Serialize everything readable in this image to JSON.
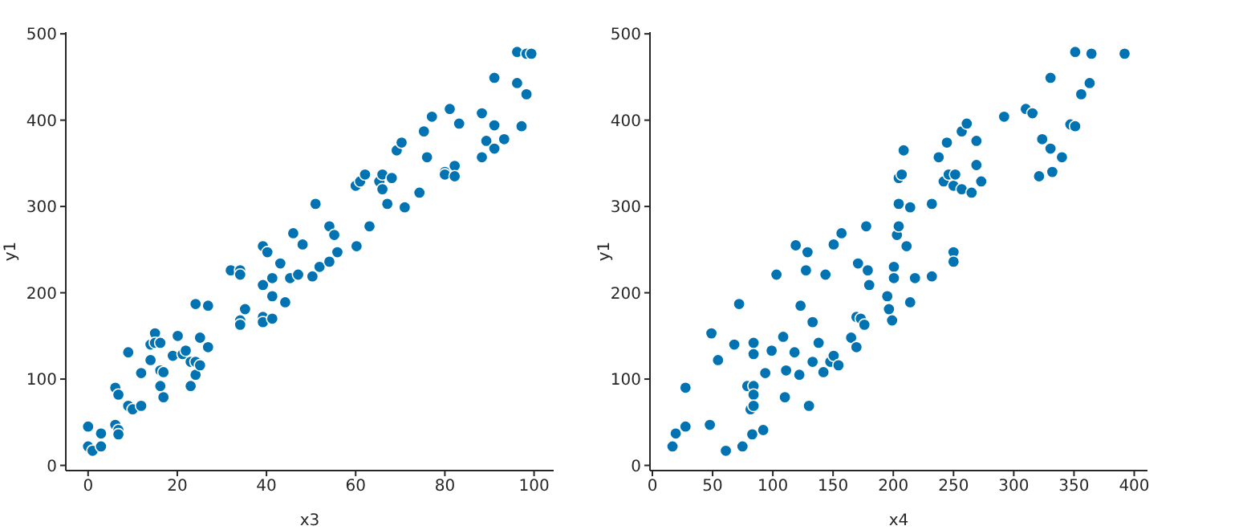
{
  "chart_data": [
    {
      "type": "scatter",
      "xlabel": "x3",
      "ylabel": "y1",
      "color": "#0173b2",
      "marker": "circle",
      "grid": false,
      "xlim": [
        -5,
        104.4
      ],
      "ylim": [
        -6,
        502
      ],
      "xticks": [
        0,
        20,
        40,
        60,
        80,
        100
      ],
      "yticks": [
        0,
        100,
        200,
        300,
        400,
        500
      ],
      "x": [
        0,
        0,
        1,
        2.9,
        2.9,
        6.1,
        6.8,
        6.8,
        6.1,
        6.8,
        9,
        9,
        10,
        11.9,
        11.9,
        14,
        14,
        15,
        15,
        16.2,
        16.2,
        16.2,
        16.9,
        16.9,
        19,
        20.1,
        21.2,
        21.9,
        23,
        23,
        24.1,
        24.1,
        24.1,
        25.1,
        25.1,
        26.9,
        26.9,
        32,
        34.1,
        34.1,
        34.1,
        34.1,
        35.2,
        39.2,
        39.2,
        39.2,
        39.2,
        40.2,
        41.3,
        41.3,
        41.3,
        43.1,
        44.2,
        45.3,
        46,
        47.1,
        48.1,
        50.3,
        51,
        51.9,
        54.1,
        55.2,
        55.9,
        54.1,
        60.2,
        63.1,
        60,
        61,
        62.1,
        65.3,
        66,
        66,
        68.1,
        67.1,
        69.2,
        70.3,
        71,
        74.3,
        75.3,
        76,
        77.1,
        80,
        80,
        81.1,
        82.2,
        82.2,
        83.2,
        88.3,
        88.3,
        89.3,
        91.1,
        91.1,
        91.1,
        93.3,
        96.2,
        96.2,
        97.2,
        98.3,
        99.4,
        98.3
      ],
      "values": [
        45,
        22,
        17,
        37,
        22,
        47,
        41,
        36,
        90,
        82,
        131,
        69,
        65,
        69,
        107,
        122,
        140,
        153,
        142,
        142,
        110,
        92,
        108,
        79,
        127,
        150,
        129,
        133,
        120,
        92,
        120,
        105,
        187,
        148,
        116,
        185,
        137,
        226,
        226,
        221,
        168,
        163,
        181,
        254,
        209,
        172,
        166,
        247,
        217,
        196,
        170,
        234,
        189,
        217,
        269,
        221,
        256,
        219,
        303,
        230,
        277,
        267,
        247,
        236,
        254,
        277,
        324,
        329,
        337,
        329,
        337,
        320,
        333,
        303,
        365,
        374,
        299,
        316,
        387,
        357,
        404,
        340,
        337,
        413,
        347,
        335,
        396,
        408,
        357,
        376,
        449,
        394,
        367,
        378,
        479,
        443,
        393,
        477,
        477,
        430
      ]
    },
    {
      "type": "scatter",
      "xlabel": "x4",
      "ylabel": "y1",
      "color": "#0173b2",
      "marker": "circle",
      "grid": false,
      "xlim": [
        -2,
        411
      ],
      "ylim": [
        -6,
        502
      ],
      "xticks": [
        0,
        50,
        100,
        150,
        200,
        250,
        300,
        350,
        400
      ],
      "yticks": [
        0,
        100,
        200,
        300,
        400,
        500
      ],
      "x": [
        16.7,
        19.4,
        27.5,
        27.5,
        47.7,
        49,
        54.5,
        61,
        68,
        72,
        74.8,
        78.8,
        81.5,
        82.9,
        84,
        84,
        84,
        84,
        84,
        92,
        93.7,
        99,
        103,
        108.6,
        110,
        111,
        118,
        119,
        122,
        123,
        127.5,
        128.8,
        130,
        133,
        133,
        138,
        142,
        143.7,
        147.7,
        150.5,
        150.5,
        154.5,
        157,
        165,
        169.4,
        169.4,
        170.7,
        173,
        176,
        177.5,
        178.8,
        180,
        195,
        196.4,
        199,
        200.5,
        200.5,
        203,
        204.5,
        204.5,
        204.5,
        207,
        208.6,
        211,
        214,
        214,
        218,
        232,
        232,
        237.7,
        241.8,
        244.5,
        246,
        250,
        250,
        250,
        251.4,
        256.8,
        256.8,
        261,
        265,
        269,
        269,
        273,
        292,
        310,
        315.5,
        321,
        323.6,
        330.5,
        330.5,
        332,
        340,
        347,
        351,
        351,
        356,
        363,
        364.5,
        392
      ],
      "values": [
        22,
        37,
        45,
        90,
        47,
        153,
        122,
        17,
        140,
        187,
        22,
        92,
        65,
        36,
        92,
        82,
        69,
        142,
        129,
        41,
        107,
        133,
        221,
        149,
        79,
        110,
        131,
        255,
        105,
        185,
        226,
        247,
        69,
        166,
        120,
        142,
        108,
        221,
        120,
        256,
        127,
        116,
        269,
        148,
        172,
        137,
        234,
        170,
        163,
        277,
        226,
        209,
        196,
        181,
        168,
        230,
        217,
        267,
        277,
        303,
        333,
        337,
        365,
        254,
        299,
        189,
        217,
        303,
        219,
        357,
        329,
        374,
        337,
        247,
        236,
        324,
        337,
        387,
        320,
        396,
        316,
        376,
        348,
        329,
        404,
        413,
        408,
        335,
        378,
        449,
        367,
        340,
        357,
        395,
        393,
        479,
        430,
        443,
        477,
        477
      ]
    }
  ]
}
